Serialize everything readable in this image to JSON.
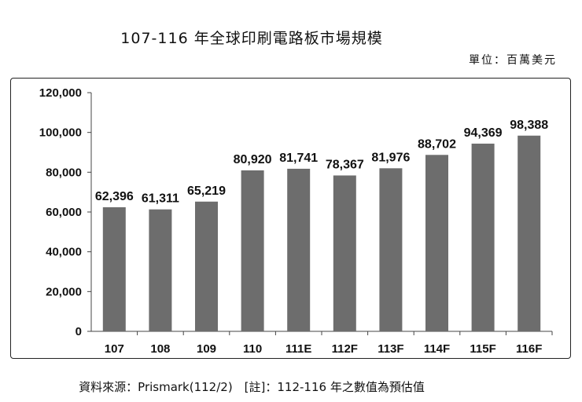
{
  "header": {
    "title": "107-116 年全球印刷電路板市場規模",
    "unit": "單位：百萬美元"
  },
  "footer": {
    "source": "資料來源：Prismark(112/2)　[註]：112-116 年之數值為預估值"
  },
  "chart_data": {
    "type": "bar",
    "title": "107-116 年全球印刷電路板市場規模",
    "xlabel": "",
    "ylabel": "",
    "categories": [
      "107",
      "108",
      "109",
      "110",
      "111E",
      "112F",
      "113F",
      "114F",
      "115F",
      "116F"
    ],
    "values": [
      62396,
      61311,
      65219,
      80920,
      81741,
      78367,
      81976,
      88702,
      94369,
      98388
    ],
    "data_labels": [
      "62,396",
      "61,311",
      "65,219",
      "80,920",
      "81,741",
      "78,367",
      "81,976",
      "88,702",
      "94,369",
      "98,388"
    ],
    "ylim": [
      0,
      120000
    ],
    "yticks": [
      0,
      20000,
      40000,
      60000,
      80000,
      100000,
      120000
    ],
    "ytick_labels": [
      "0",
      "20,000",
      "40,000",
      "60,000",
      "80,000",
      "100,000",
      "120,000"
    ],
    "grid": false,
    "legend": "none",
    "bar_color": "#6d6d6d"
  }
}
